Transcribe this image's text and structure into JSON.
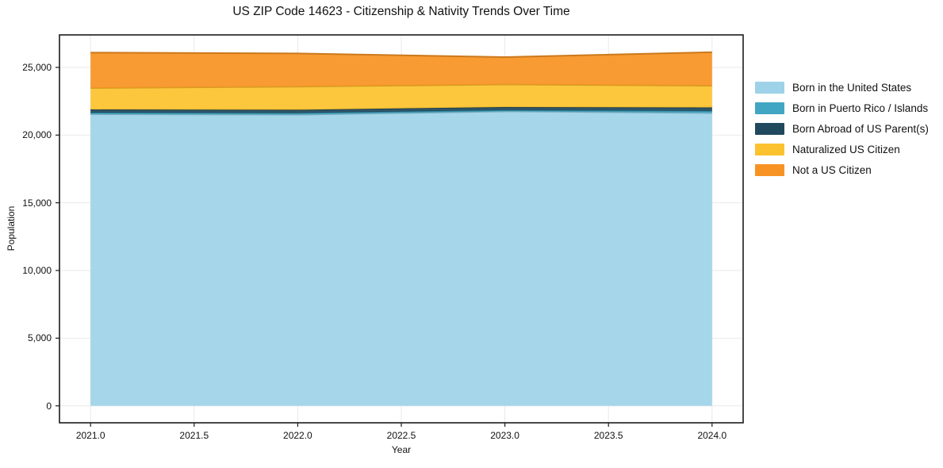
{
  "chart_data": {
    "type": "area",
    "stacked": true,
    "title": "US ZIP Code 14623 - Citizenship & Nativity Trends Over Time",
    "xlabel": "Year",
    "ylabel": "Population",
    "x": [
      2021,
      2022,
      2023,
      2024
    ],
    "series": [
      {
        "name": "Born in the United States",
        "color": "#9DD2E8",
        "values": [
          21540,
          21510,
          21750,
          21630
        ]
      },
      {
        "name": "Born in Puerto Rico / Islands",
        "color": "#41A6C2",
        "values": [
          120,
          120,
          90,
          150
        ]
      },
      {
        "name": "Born Abroad of US Parent(s)",
        "color": "#20495D",
        "values": [
          230,
          240,
          230,
          260
        ]
      },
      {
        "name": "Naturalized US Citizen",
        "color": "#FCC22D",
        "values": [
          1590,
          1710,
          1670,
          1610
        ]
      },
      {
        "name": "Not a US Citizen",
        "color": "#F79322",
        "values": [
          2610,
          2450,
          2020,
          2470
        ]
      }
    ],
    "totals": [
      26090,
      26030,
      25760,
      26120
    ],
    "x_tick_values": [
      2021.0,
      2021.5,
      2022.0,
      2022.5,
      2023.0,
      2023.5,
      2024.0
    ],
    "x_tick_labels": [
      "2021.0",
      "2021.5",
      "2022.0",
      "2022.5",
      "2023.0",
      "2023.5",
      "2024.0"
    ],
    "y_tick_values": [
      0,
      5000,
      10000,
      15000,
      20000,
      25000
    ],
    "y_tick_labels": [
      "0",
      "5,000",
      "10,000",
      "15,000",
      "20,000",
      "25,000"
    ],
    "xlim": [
      2020.85,
      2024.15
    ],
    "ylim": [
      -1250,
      27400
    ],
    "grid": true,
    "grid_color": "#e9e9e9",
    "spine_color": "#1c1c1c",
    "legend_position": "right-outside"
  }
}
